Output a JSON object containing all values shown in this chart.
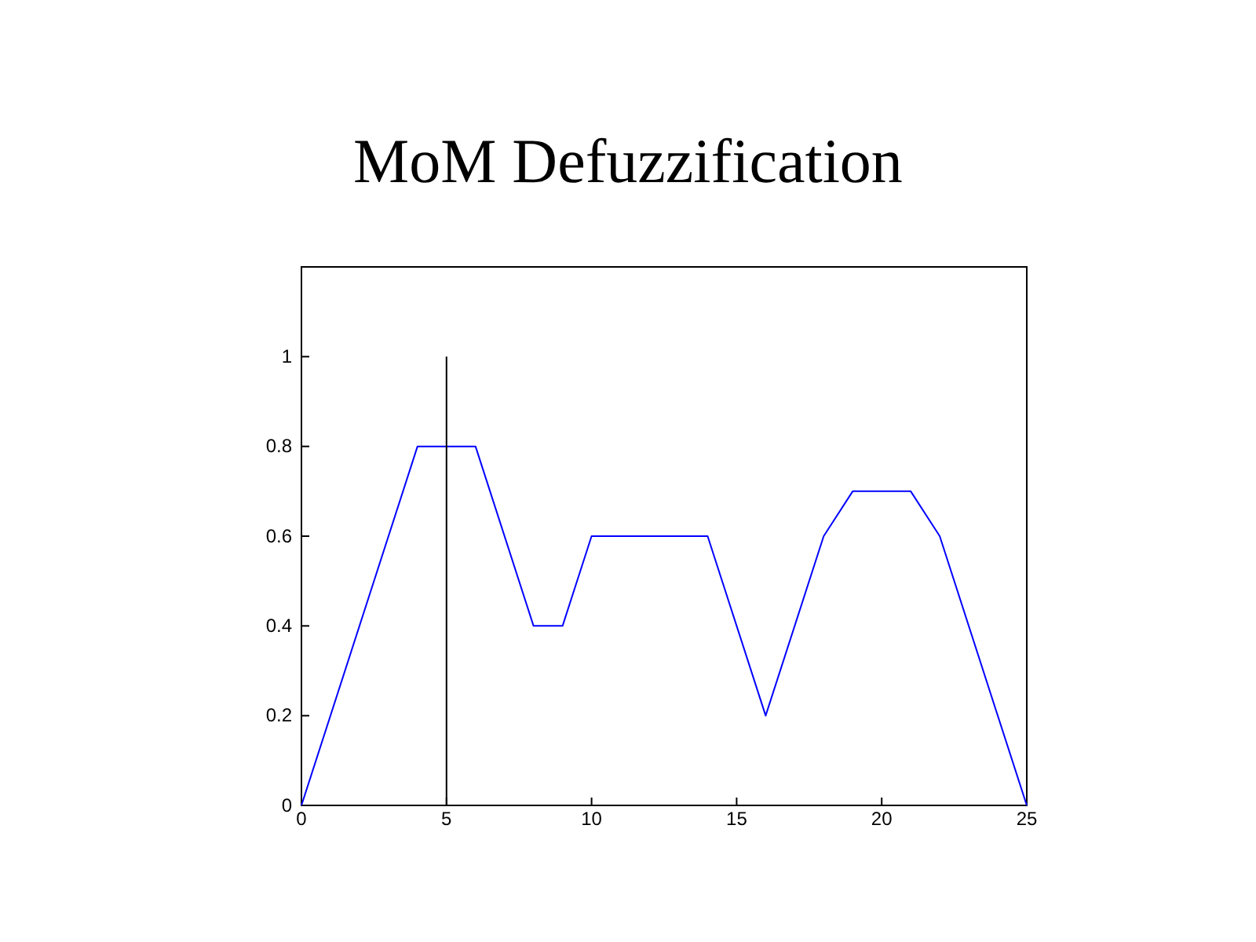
{
  "chart_data": {
    "type": "line",
    "title": "MoM Defuzzification",
    "xlim": [
      0,
      25
    ],
    "xticks": [
      0,
      5,
      10,
      15,
      20,
      25
    ],
    "ylim": [
      0,
      1.2
    ],
    "yticks": [
      0,
      0.2,
      0.4,
      0.6,
      0.8,
      1
    ],
    "grid": false,
    "series": [
      {
        "color": "#0000ff",
        "x": [
          0,
          4,
          6,
          8,
          9,
          10,
          14,
          16,
          18,
          19,
          21,
          22,
          25
        ],
        "values": [
          0,
          0.8,
          0.8,
          0.4,
          0.4,
          0.6,
          0.6,
          0.2,
          0.6,
          0.7,
          0.7,
          0.6,
          0
        ]
      }
    ],
    "ref_lines": [
      {
        "axis": "x",
        "value": 5,
        "color": "#000000"
      }
    ]
  }
}
